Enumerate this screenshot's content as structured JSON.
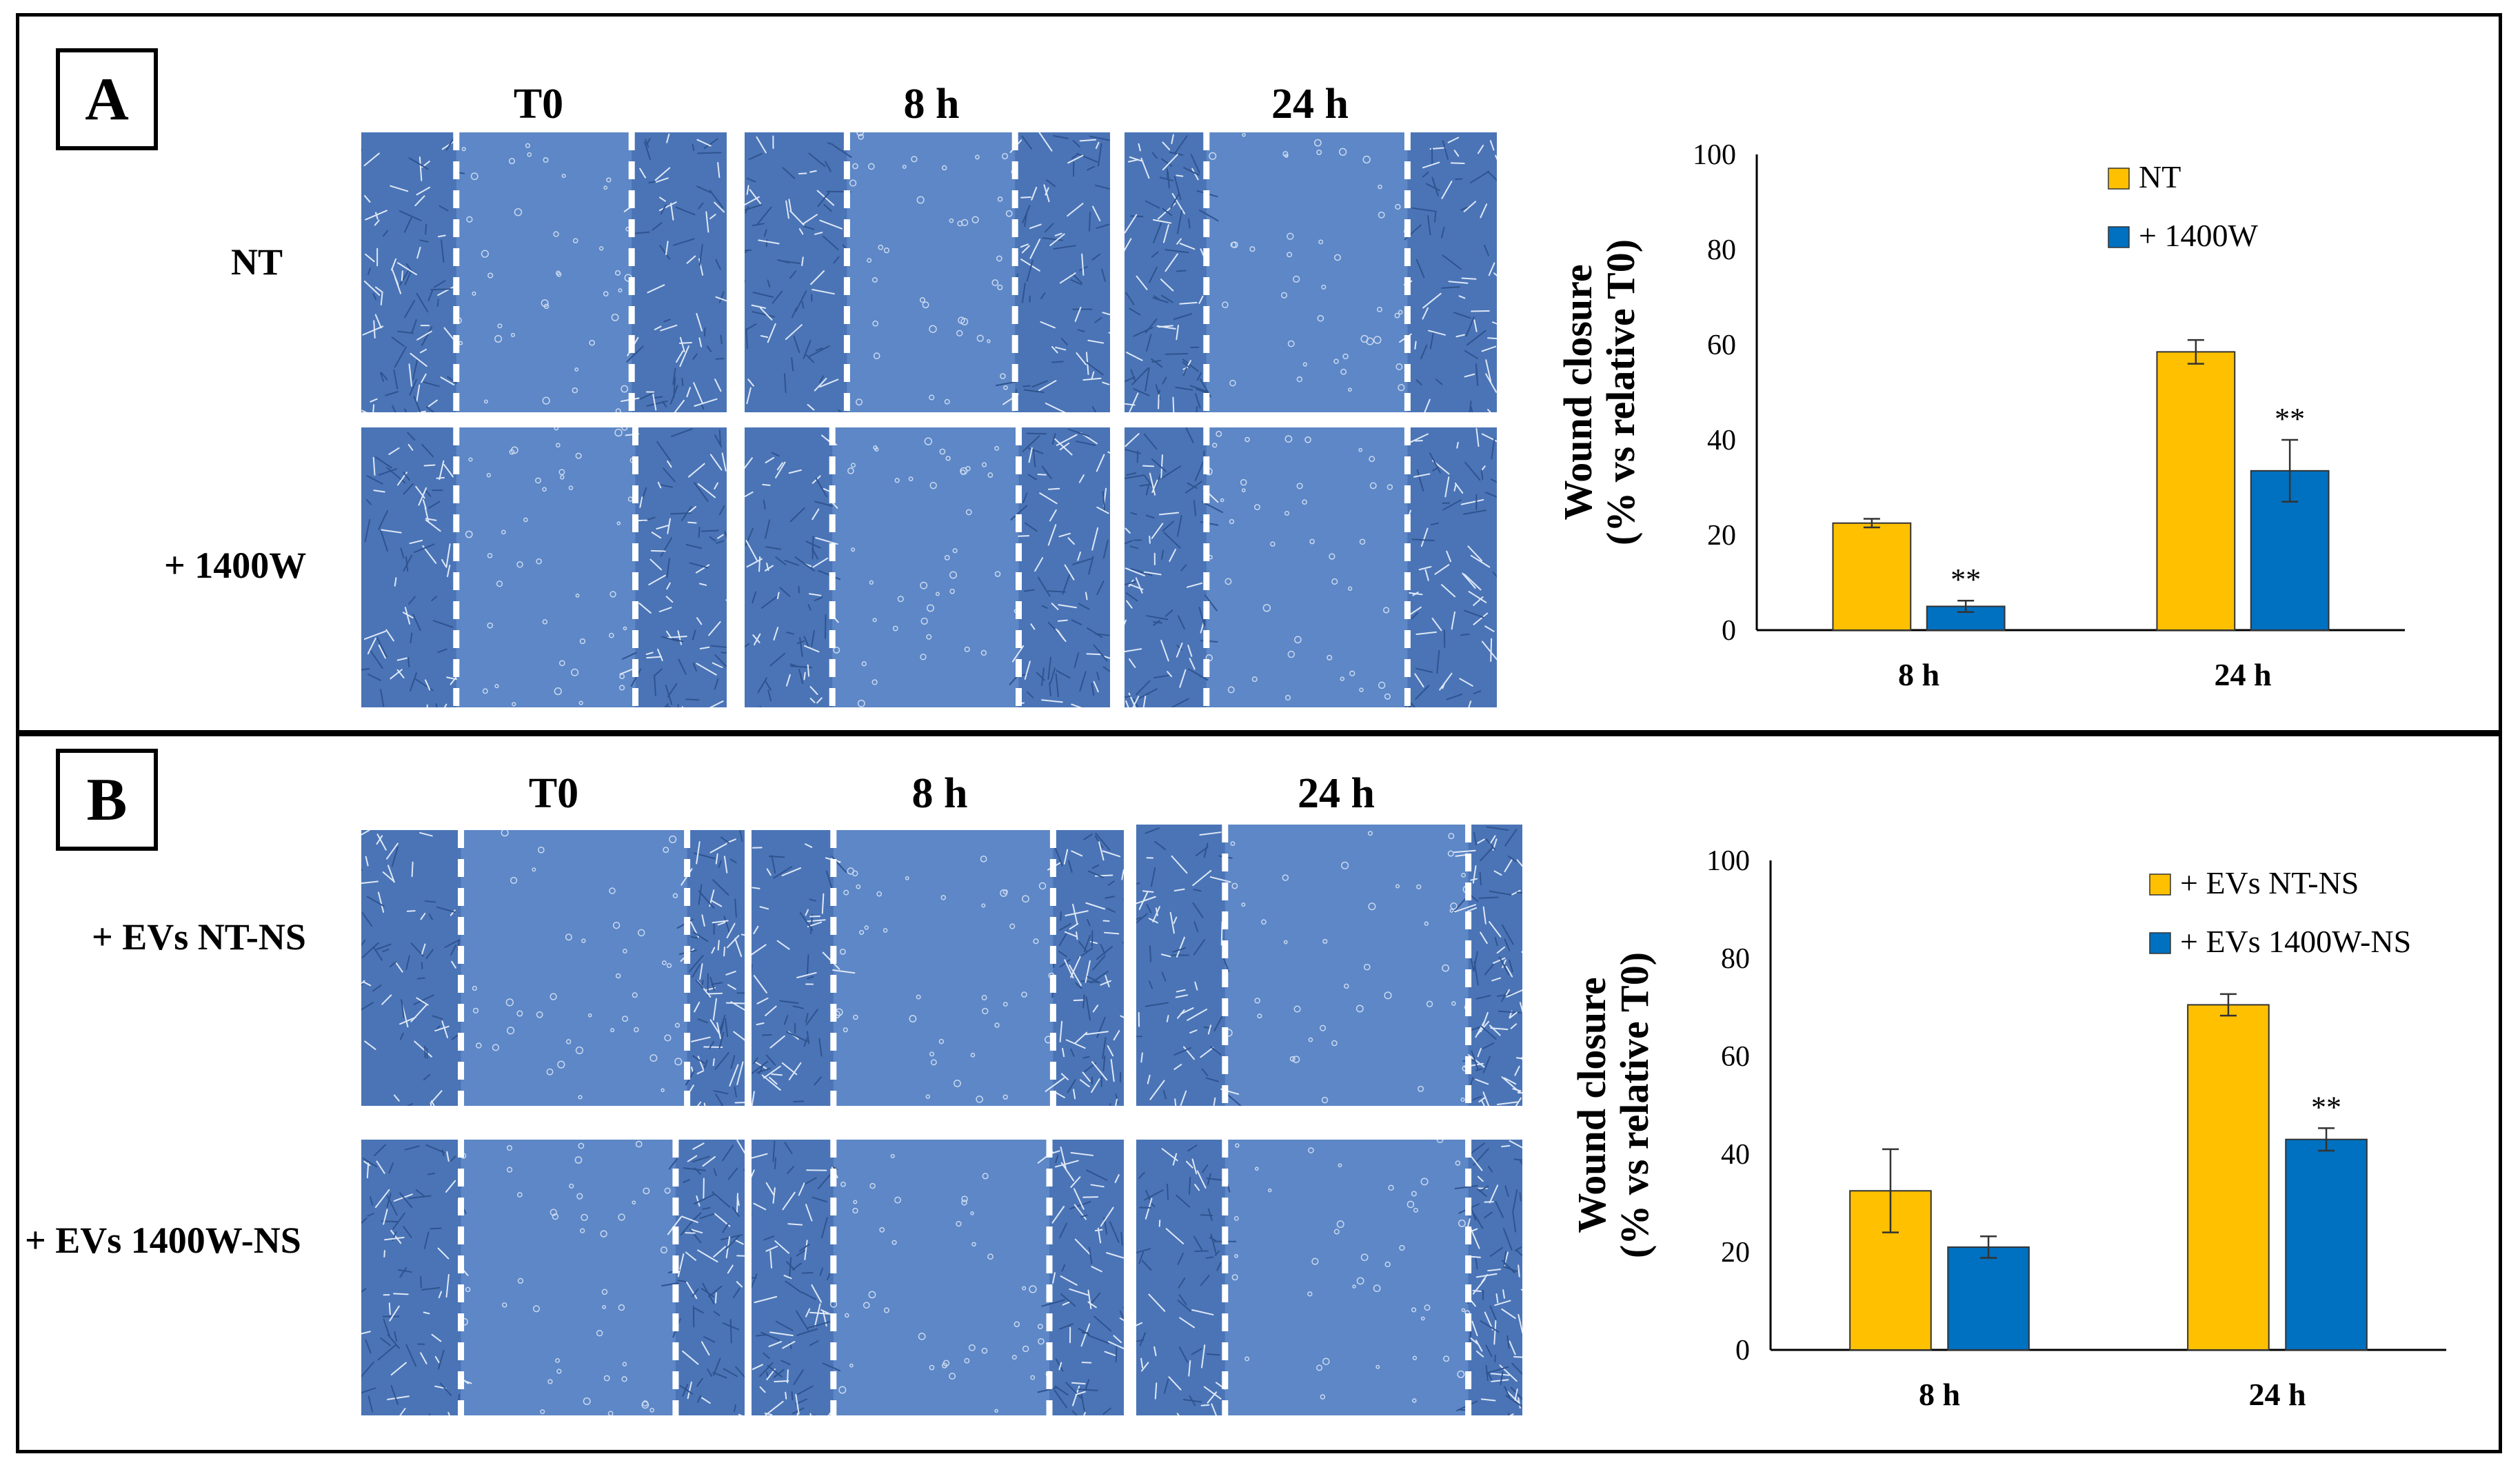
{
  "panels": [
    {
      "letter": "A",
      "columns": [
        "T0",
        "8 h",
        "24 h"
      ],
      "rows": [
        "NT",
        "+ 1400W"
      ],
      "chart_data": {
        "type": "bar",
        "categories": [
          "8 h",
          "24 h"
        ],
        "series": [
          {
            "name": "NT",
            "color": "#FFC000",
            "values": [
              22.5,
              58.5
            ],
            "errors": [
              0.9,
              2.5
            ],
            "sig": [
              "",
              ""
            ]
          },
          {
            "name": "+ 1400W",
            "color": "#0070C0",
            "values": [
              5,
              33.5
            ],
            "errors": [
              1.2,
              6.5
            ],
            "sig": [
              "**",
              "**"
            ]
          }
        ],
        "ylabel_line1": "Wound closure",
        "ylabel_line2": "(% vs relative T0)",
        "ylim": [
          0,
          100
        ],
        "yticks": [
          0,
          20,
          40,
          60,
          80,
          100
        ],
        "legend": "top-right"
      }
    },
    {
      "letter": "B",
      "columns": [
        "T0",
        "8 h",
        "24 h"
      ],
      "rows": [
        "+ EVs NT-NS",
        "+ EVs 1400W-NS"
      ],
      "chart_data": {
        "type": "bar",
        "categories": [
          "8 h",
          "24 h"
        ],
        "series": [
          {
            "name": "+ EVs NT-NS",
            "color": "#FFC000",
            "values": [
              32.5,
              70.5
            ],
            "errors": [
              8.5,
              2.2
            ],
            "sig": [
              "",
              ""
            ]
          },
          {
            "name": "+ EVs 1400W-NS",
            "color": "#0070C0",
            "values": [
              21,
              43
            ],
            "errors": [
              2.2,
              2.3
            ],
            "sig": [
              "",
              "**"
            ]
          }
        ],
        "ylabel_line1": "Wound closure",
        "ylabel_line2": "(% vs relative T0)",
        "ylim": [
          0,
          100
        ],
        "yticks": [
          0,
          20,
          40,
          60,
          80,
          100
        ],
        "legend": "top-right"
      }
    }
  ]
}
